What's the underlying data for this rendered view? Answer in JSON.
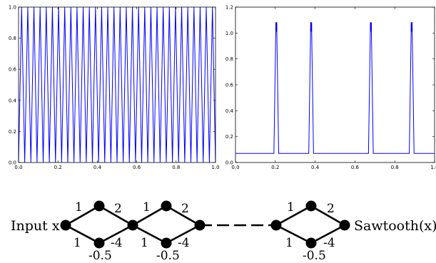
{
  "chart_data": [
    {
      "type": "line",
      "title": "",
      "xlabel": "",
      "ylabel": "",
      "xlim": [
        0.0,
        1.0
      ],
      "ylim": [
        0.0,
        1.0
      ],
      "xticks": [
        "0.0",
        "0.2",
        "0.4",
        "0.6",
        "0.8",
        "1.0"
      ],
      "yticks": [
        "0.0",
        "0.2",
        "0.4",
        "0.6",
        "0.8",
        "1.0"
      ],
      "grid": false,
      "series": [
        {
          "color": "#0000ff",
          "shape": "triangle wave (sawtooth)",
          "teeth": 32,
          "y_min": 0.0,
          "y_max": 1.0
        }
      ]
    },
    {
      "type": "line",
      "title": "",
      "xlabel": "",
      "ylabel": "",
      "xlim": [
        0.0,
        1.0
      ],
      "ylim": [
        0.0,
        1.2
      ],
      "xticks": [
        "0.0",
        "0.2",
        "0.4",
        "0.6",
        "0.8",
        "1.0"
      ],
      "yticks": [
        "0.0",
        "0.2",
        "0.4",
        "0.6",
        "0.8",
        "1.0",
        "1.2"
      ],
      "grid": false,
      "series": [
        {
          "color": "#0000ff",
          "baseline": 0.07,
          "spike_half_width": 0.012,
          "spikes": [
            {
              "x": 0.205,
              "y": 1.08
            },
            {
              "x": 0.38,
              "y": 1.08
            },
            {
              "x": 0.68,
              "y": 1.08
            },
            {
              "x": 0.885,
              "y": 1.08
            }
          ]
        }
      ]
    }
  ],
  "network": {
    "input_label": "Input x",
    "output_label": "Sawtooth(x)",
    "blocks": [
      {
        "w_top_in": "1",
        "w_top_out": "2",
        "w_bot_in": "1",
        "w_bot_out": "-4",
        "bias": "-0.5"
      },
      {
        "w_top_in": "1",
        "w_top_out": "2",
        "w_bot_in": "1",
        "w_bot_out": "-4",
        "bias": "-0.5"
      },
      {
        "w_top_in": "1",
        "w_top_out": "2",
        "w_bot_in": "1",
        "w_bot_out": "-4",
        "bias": "-0.5"
      }
    ]
  }
}
